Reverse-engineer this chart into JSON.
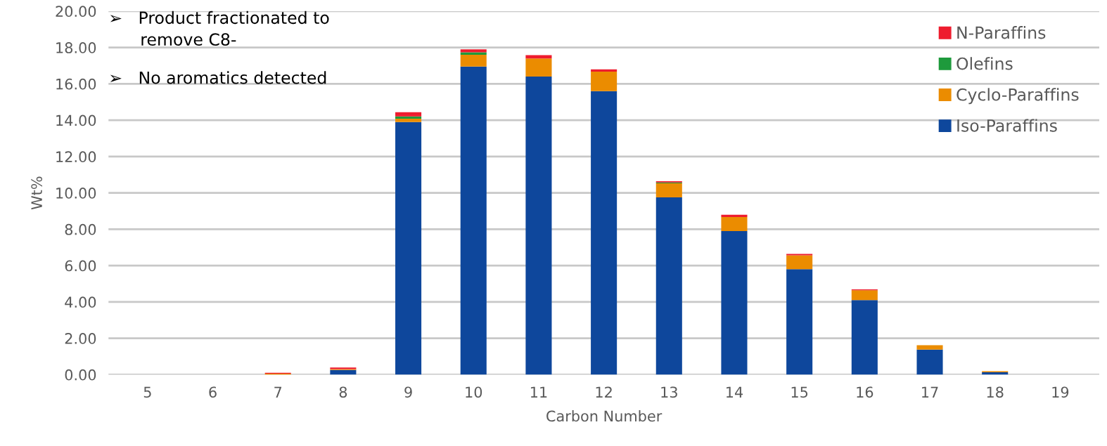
{
  "chart_data": {
    "type": "bar",
    "stacked": true,
    "xlabel": "Carbon Number",
    "ylabel": "Wt%",
    "categories": [
      "5",
      "6",
      "7",
      "8",
      "9",
      "10",
      "11",
      "12",
      "13",
      "14",
      "15",
      "16",
      "17",
      "18",
      "19"
    ],
    "series": [
      {
        "name": "Iso-Paraffins",
        "color": "#0e479c",
        "values": [
          0,
          0,
          null,
          0.26,
          13.9,
          16.95,
          16.4,
          15.6,
          9.75,
          7.9,
          5.8,
          4.1,
          1.38,
          0.13,
          0
        ]
      },
      {
        "name": "Cyclo-Paraffins",
        "color": "#eb8c00",
        "values": [
          0,
          0,
          0.05,
          0.05,
          0.18,
          0.65,
          1.0,
          1.07,
          0.78,
          0.77,
          0.77,
          0.54,
          0.24,
          0.06,
          0
        ]
      },
      {
        "name": "Olefins",
        "color": "#1e9a3c",
        "values": [
          0,
          0,
          0,
          0,
          0.13,
          0.13,
          0,
          0,
          0.05,
          0,
          0,
          0,
          0,
          0,
          0
        ]
      },
      {
        "name": "N-Paraffins",
        "color": "#ee1c2e",
        "values": [
          0,
          0,
          0.05,
          0.08,
          0.23,
          0.17,
          0.18,
          0.13,
          0.06,
          0.13,
          0.07,
          0.05,
          0,
          null,
          0
        ]
      }
    ],
    "ylim": [
      0,
      20
    ],
    "yticks": [
      {
        "value": 0,
        "label": "0.00"
      },
      {
        "value": 2,
        "label": "2.00"
      },
      {
        "value": 4,
        "label": "4.00"
      },
      {
        "value": 6,
        "label": "6.00"
      },
      {
        "value": 8,
        "label": "8.00"
      },
      {
        "value": 10,
        "label": "10.00"
      },
      {
        "value": 12,
        "label": "12.00"
      },
      {
        "value": 14,
        "label": "14.00"
      },
      {
        "value": 16,
        "label": "16.00"
      },
      {
        "value": 18,
        "label": "18.00"
      },
      {
        "value": 20,
        "label": "20.00"
      }
    ],
    "grid": "y",
    "legend": "top right",
    "annotations": [
      "➢   Product fractionated to\n      remove C8-",
      "➢   No aromatics detected"
    ]
  }
}
